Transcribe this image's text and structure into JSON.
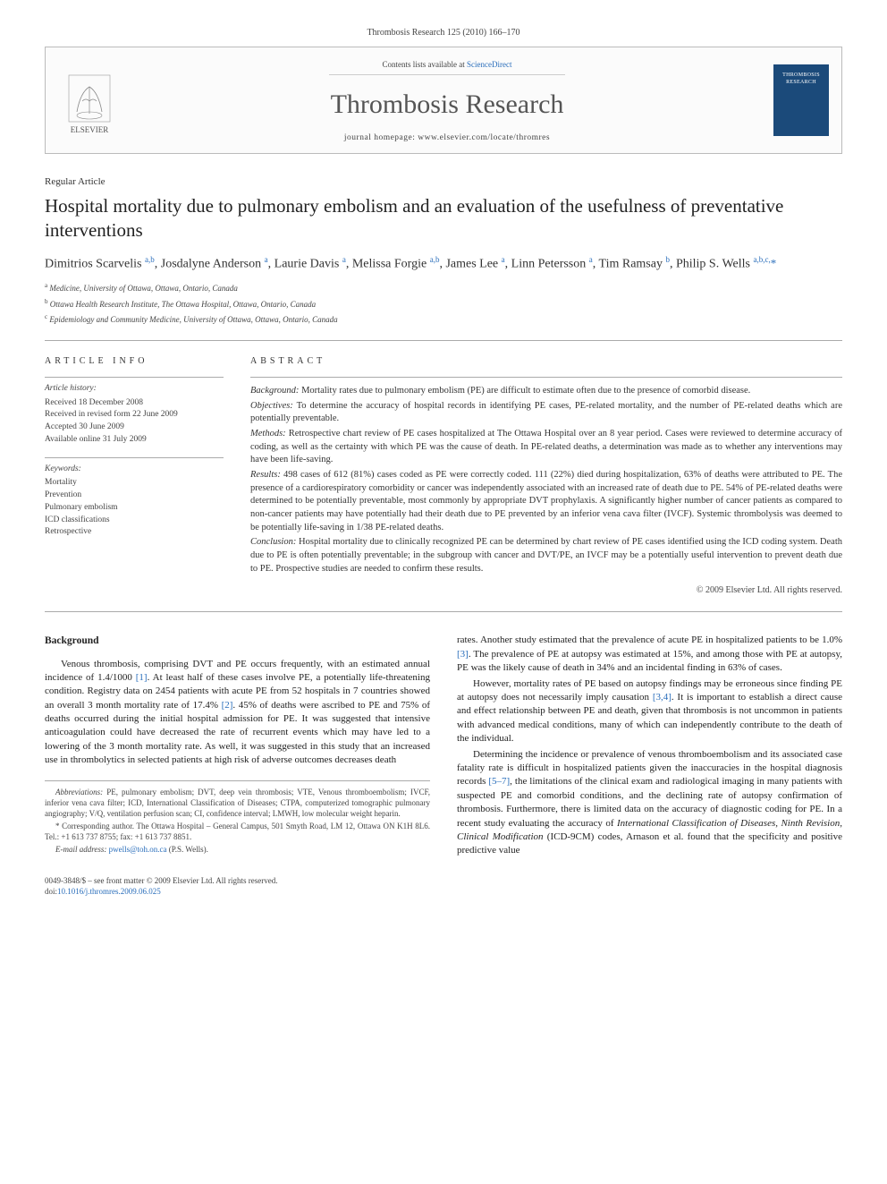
{
  "journal_ref": "Thrombosis Research 125 (2010) 166–170",
  "masthead": {
    "contents_prefix": "Contents lists available at ",
    "contents_link": "ScienceDirect",
    "journal_name": "Thrombosis Research",
    "homepage_label": "journal homepage: ",
    "homepage_url": "www.elsevier.com/locate/thromres",
    "publisher": "ELSEVIER",
    "cover_text": "THROMBOSIS RESEARCH"
  },
  "article_type": "Regular Article",
  "title": "Hospital mortality due to pulmonary embolism and an evaluation of the usefulness of preventative interventions",
  "authors_html": "Dimitrios Scarvelis <sup class='aff-sup'>a,b</sup>, Josdalyne Anderson <sup class='aff-sup'>a</sup>, Laurie Davis <sup class='aff-sup'>a</sup>, Melissa Forgie <sup class='aff-sup'>a,b</sup>, James Lee <sup class='aff-sup'>a</sup>, Linn Petersson <sup class='aff-sup'>a</sup>, Tim Ramsay <sup class='aff-sup'>b</sup>, Philip S. Wells <sup class='aff-sup'>a,b,c,</sup><span class='corr'>*</span>",
  "affiliations": [
    {
      "sup": "a",
      "text": "Medicine, University of Ottawa, Ottawa, Ontario, Canada"
    },
    {
      "sup": "b",
      "text": "Ottawa Health Research Institute, The Ottawa Hospital, Ottawa, Ontario, Canada"
    },
    {
      "sup": "c",
      "text": "Epidemiology and Community Medicine, University of Ottawa, Ottawa, Ontario, Canada"
    }
  ],
  "article_info": {
    "head": "ARTICLE INFO",
    "history_label": "Article history:",
    "history": [
      "Received 18 December 2008",
      "Received in revised form 22 June 2009",
      "Accepted 30 June 2009",
      "Available online 31 July 2009"
    ],
    "keywords_label": "Keywords:",
    "keywords": [
      "Mortality",
      "Prevention",
      "Pulmonary embolism",
      "ICD classifications",
      "Retrospective"
    ]
  },
  "abstract": {
    "head": "ABSTRACT",
    "paras": [
      {
        "label": "Background:",
        "text": "Mortality rates due to pulmonary embolism (PE) are difficult to estimate often due to the presence of comorbid disease."
      },
      {
        "label": "Objectives:",
        "text": "To determine the accuracy of hospital records in identifying PE cases, PE-related mortality, and the number of PE-related deaths which are potentially preventable."
      },
      {
        "label": "Methods:",
        "text": "Retrospective chart review of PE cases hospitalized at The Ottawa Hospital over an 8 year period. Cases were reviewed to determine accuracy of coding, as well as the certainty with which PE was the cause of death. In PE-related deaths, a determination was made as to whether any interventions may have been life-saving."
      },
      {
        "label": "Results:",
        "text": "498 cases of 612 (81%) cases coded as PE were correctly coded. 111 (22%) died during hospitalization, 63% of deaths were attributed to PE. The presence of a cardiorespiratory comorbidity or cancer was independently associated with an increased rate of death due to PE. 54% of PE-related deaths were determined to be potentially preventable, most commonly by appropriate DVT prophylaxis. A significantly higher number of cancer patients as compared to non-cancer patients may have potentially had their death due to PE prevented by an inferior vena cava filter (IVCF). Systemic thrombolysis was deemed to be potentially life-saving in 1/38 PE-related deaths."
      },
      {
        "label": "Conclusion:",
        "text": "Hospital mortality due to clinically recognized PE can be determined by chart review of PE cases identified using the ICD coding system. Death due to PE is often potentially preventable; in the subgroup with cancer and DVT/PE, an IVCF may be a potentially useful intervention to prevent death due to PE. Prospective studies are needed to confirm these results."
      }
    ],
    "copyright": "© 2009 Elsevier Ltd. All rights reserved."
  },
  "body": {
    "heading": "Background",
    "p1": "Venous thrombosis, comprising DVT and PE occurs frequently, with an estimated annual incidence of 1.4/1000 <span class='cite'>[1]</span>. At least half of these cases involve PE, a potentially life-threatening condition. Registry data on 2454 patients with acute PE from 52 hospitals in 7 countries showed an overall 3 month mortality rate of 17.4% <span class='cite'>[2]</span>. 45% of deaths were ascribed to PE and 75% of deaths occurred during the initial hospital admission for PE. It was suggested that intensive anticoagulation could have decreased the rate of recurrent events which may have led to a lowering of the 3 month mortality rate. As well, it was suggested in this study that an increased use in thrombolytics in selected patients at high risk of adverse outcomes decreases death",
    "p2": "rates. Another study estimated that the prevalence of acute PE in hospitalized patients to be 1.0% <span class='cite'>[3]</span>. The prevalence of PE at autopsy was estimated at 15%, and among those with PE at autopsy, PE was the likely cause of death in 34% and an incidental finding in 63% of cases.",
    "p3": "However, mortality rates of PE based on autopsy findings may be erroneous since finding PE at autopsy does not necessarily imply causation <span class='cite'>[3,4]</span>. It is important to establish a direct cause and effect relationship between PE and death, given that thrombosis is not uncommon in patients with advanced medical conditions, many of which can independently contribute to the death of the individual.",
    "p4": "Determining the incidence or prevalence of venous thromboembolism and its associated case fatality rate is difficult in hospitalized patients given the inaccuracies in the hospital diagnosis records <span class='cite'>[5–7]</span>, the limitations of the clinical exam and radiological imaging in many patients with suspected PE and comorbid conditions, and the declining rate of autopsy confirmation of thrombosis. Furthermore, there is limited data on the accuracy of diagnostic coding for PE. In a recent study evaluating the accuracy of <i>International Classification of Diseases, Ninth Revision, Clinical Modification</i> (ICD-9CM) codes, Arnason et al. found that the specificity and positive predictive value"
  },
  "footnotes": {
    "abbrev_label": "Abbreviations:",
    "abbrev_text": "PE, pulmonary embolism; DVT, deep vein thrombosis; VTE, Venous thromboembolism; IVCF, inferior vena cava filter; ICD, International Classification of Diseases; CTPA, computerized tomographic pulmonary angiography; V/Q, ventilation perfusion scan; CI, confidence interval; LMWH, low molecular weight heparin.",
    "corr_label": "* Corresponding author.",
    "corr_text": "The Ottawa Hospital – General Campus, 501 Smyth Road, LM 12, Ottawa ON K1H 8L6. Tel.: +1 613 737 8755; fax: +1 613 737 8851.",
    "email_label": "E-mail address:",
    "email": "pwells@toh.on.ca",
    "email_who": "(P.S. Wells)."
  },
  "doi": {
    "line1": "0049-3848/$ – see front matter © 2009 Elsevier Ltd. All rights reserved.",
    "line2_prefix": "doi:",
    "line2_link": "10.1016/j.thromres.2009.06.025"
  },
  "colors": {
    "link": "#2a6ebb",
    "rule": "#aaaaaa",
    "cover_bg": "#1b4a7a"
  }
}
